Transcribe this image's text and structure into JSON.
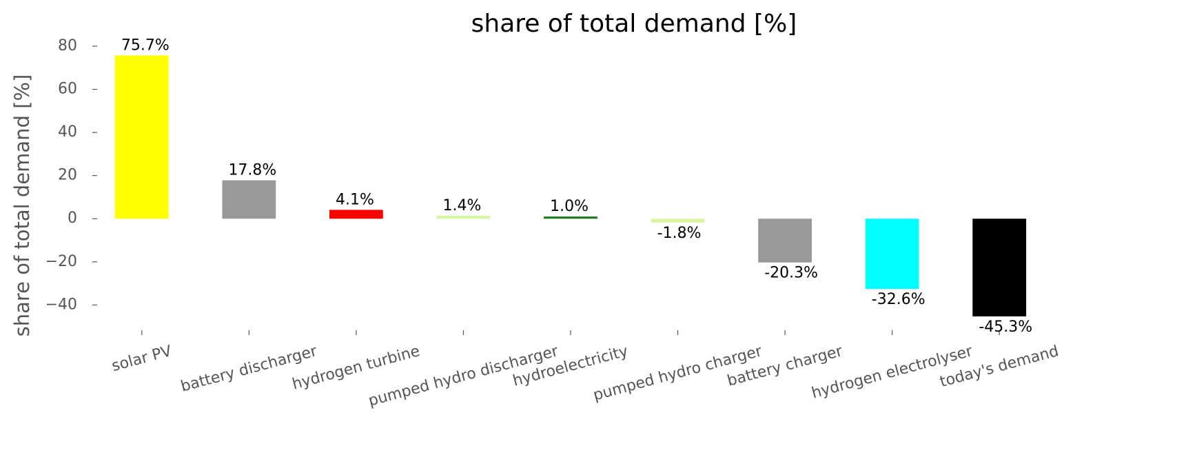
{
  "chart_data": {
    "type": "bar",
    "title": "share of total demand [%]",
    "y_label": "share of total demand [%]",
    "categories": [
      "solar PV",
      "battery discharger",
      "hydrogen turbine",
      "pumped hydro discharger",
      "hydroelectricity",
      "pumped hydro charger",
      "battery charger",
      "hydrogen electrolyser",
      "today's demand"
    ],
    "values": [
      75.7,
      17.8,
      4.1,
      1.4,
      1.0,
      -1.8,
      -20.3,
      -32.6,
      -45.3
    ],
    "value_labels": [
      "75.7%",
      "17.8%",
      "4.1%",
      "1.4%",
      "1.0%",
      "-1.8%",
      "-20.3%",
      "-32.6%",
      "-45.3%"
    ],
    "colors": [
      "#ffff00",
      "#999999",
      "#ff0000",
      "#d8f5a2",
      "#1a7a1a",
      "#d8f5a2",
      "#999999",
      "#00ffff",
      "#000000"
    ],
    "ylim": [
      -53,
      80
    ],
    "yticks": [
      {
        "value": -40,
        "label": "−40"
      },
      {
        "value": -20,
        "label": "−20"
      },
      0,
      20,
      40,
      60,
      80
    ],
    "grid": false
  }
}
